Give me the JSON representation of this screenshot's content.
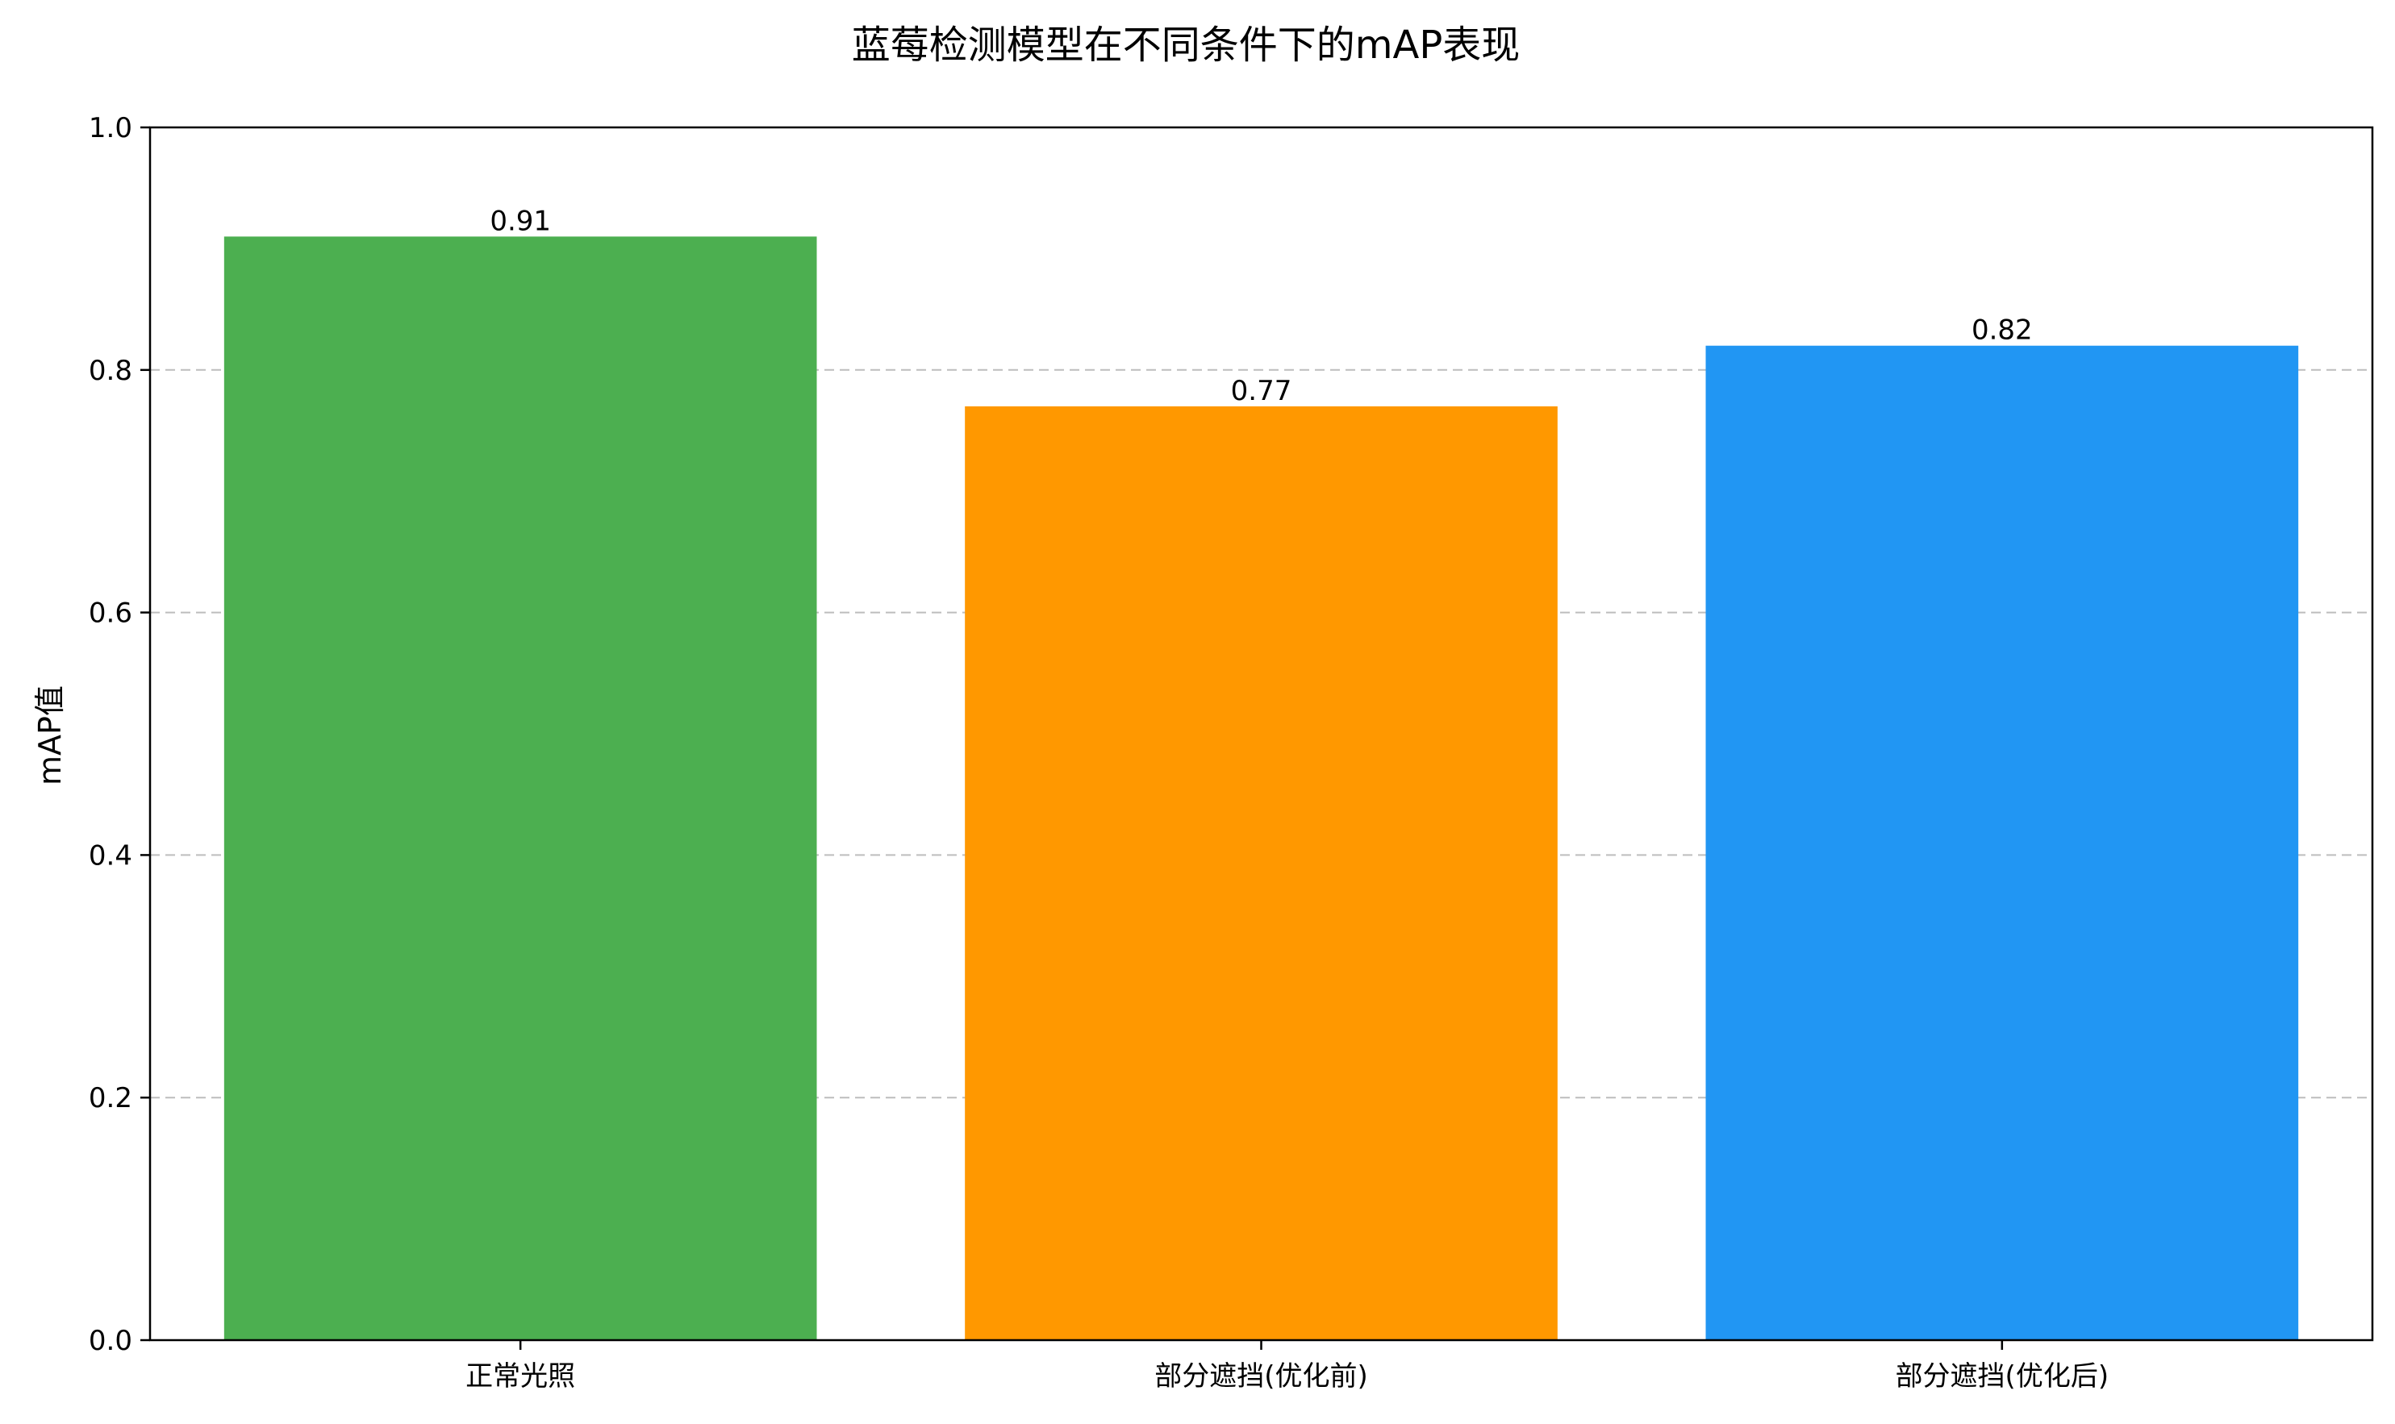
{
  "chart_data": {
    "type": "bar",
    "title": "蓝莓检测模型在不同条件下的mAP表现",
    "xlabel": "",
    "ylabel": "mAP值",
    "categories": [
      "正常光照",
      "部分遮挡(优化前)",
      "部分遮挡(优化后)"
    ],
    "values": [
      0.91,
      0.77,
      0.82
    ],
    "value_labels": [
      "0.91",
      "0.77",
      "0.82"
    ],
    "bar_colors": [
      "#4caf50",
      "#ff9800",
      "#2196f3"
    ],
    "ylim": [
      0,
      1.0
    ],
    "yticks": [
      0.0,
      0.2,
      0.4,
      0.6,
      0.8,
      1.0
    ],
    "ytick_labels": [
      "0.0",
      "0.2",
      "0.4",
      "0.6",
      "0.8",
      "1.0"
    ],
    "grid": "y-dashed",
    "legend": "none"
  }
}
